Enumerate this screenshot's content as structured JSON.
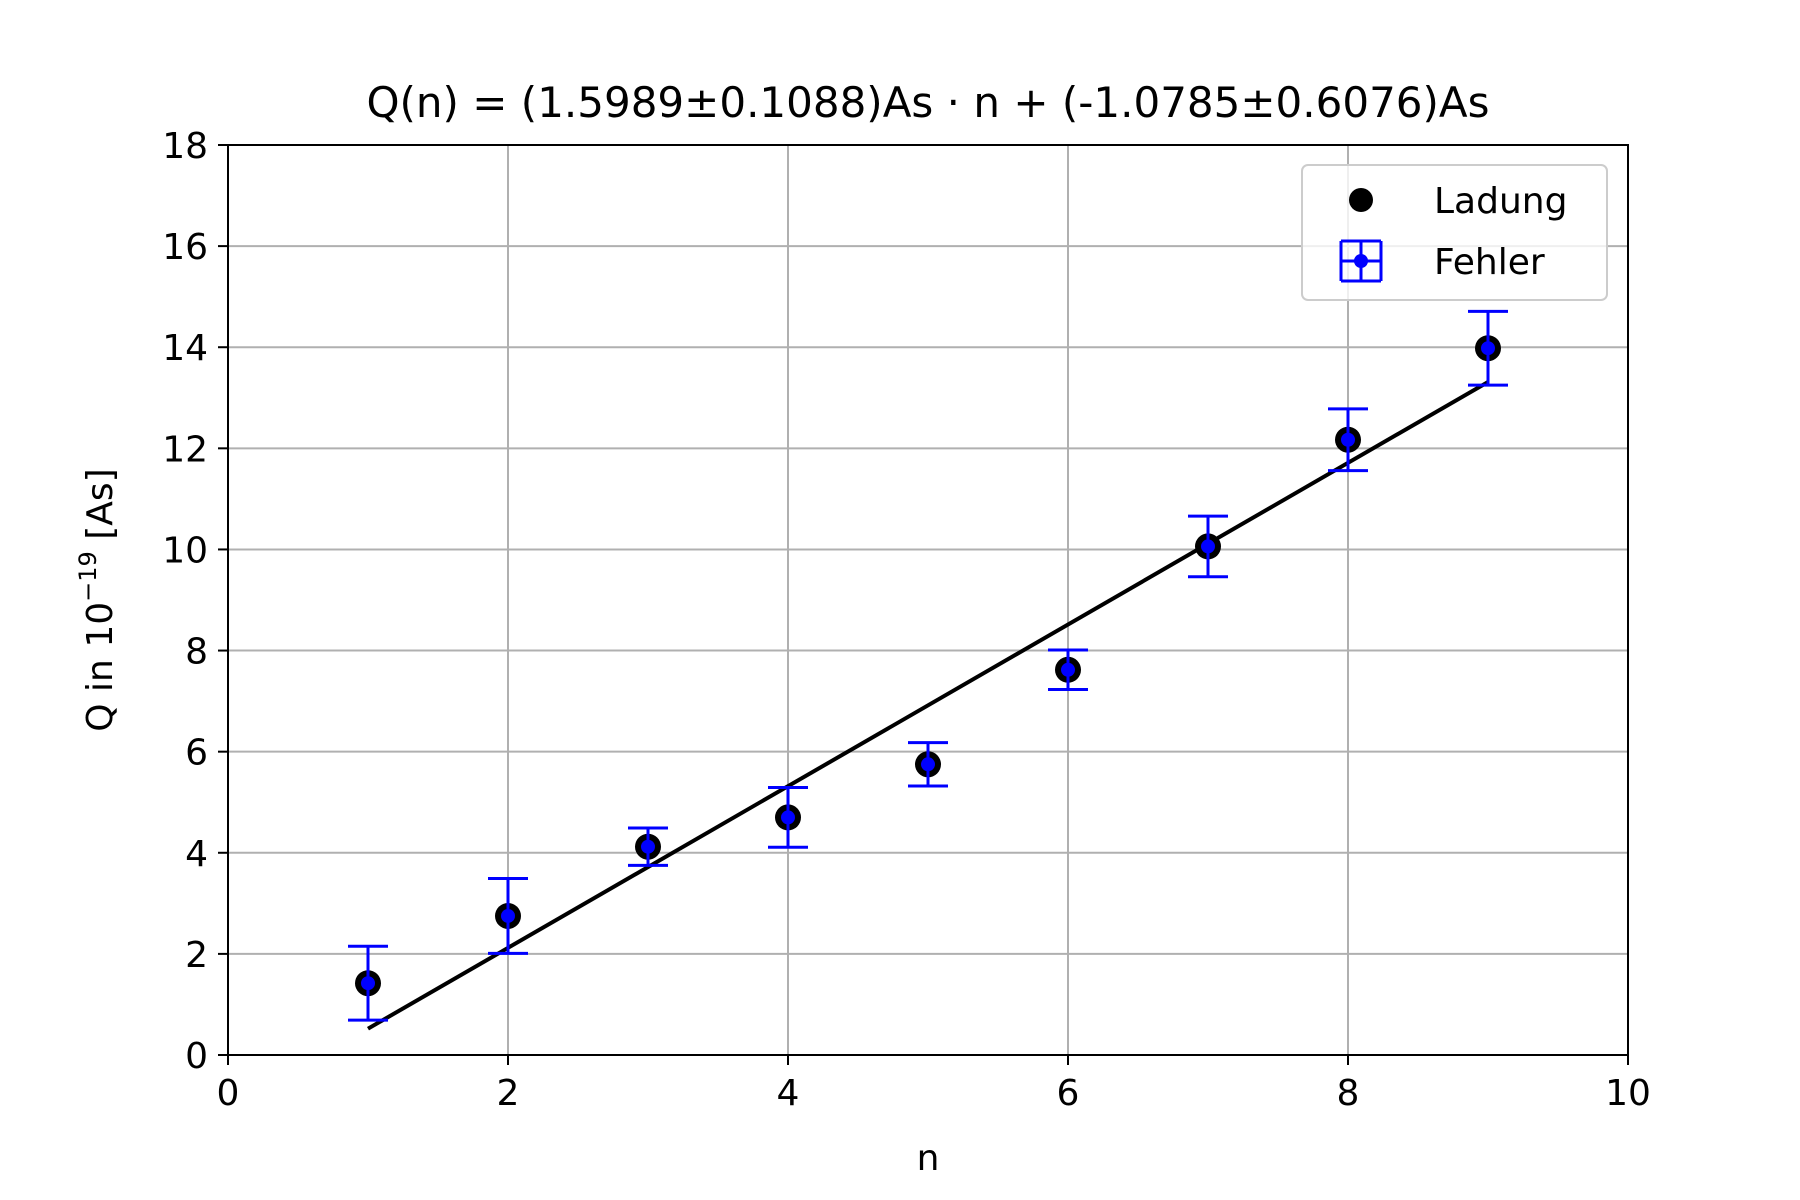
{
  "chart_data": {
    "type": "scatter",
    "title": "Q(n) = (1.5989±0.1088)As · n + (-1.0785±0.6076)As",
    "xlabel": "n",
    "ylabel": "Q in 10",
    "ylabel_exponent": "−19",
    "ylabel_unit": " [As]",
    "xlim": [
      0,
      10
    ],
    "ylim": [
      0,
      18
    ],
    "xticks": [
      0,
      2,
      4,
      6,
      8,
      10
    ],
    "yticks": [
      0,
      2,
      4,
      6,
      8,
      10,
      12,
      14,
      16,
      18
    ],
    "grid": true,
    "legend_position": "top-right",
    "series": [
      {
        "name": "Ladung",
        "kind": "markers",
        "color": "#000000",
        "x": [
          1,
          2,
          3,
          4,
          5,
          6,
          7,
          8,
          9
        ],
        "y": [
          1.42,
          2.75,
          4.12,
          4.7,
          5.75,
          7.62,
          10.06,
          12.17,
          13.98
        ]
      },
      {
        "name": "Fehler",
        "kind": "errorbar",
        "color": "#0000ff",
        "x": [
          1,
          2,
          3,
          4,
          5,
          6,
          7,
          8,
          9
        ],
        "y": [
          1.42,
          2.75,
          4.12,
          4.7,
          5.75,
          7.62,
          10.06,
          12.17,
          13.98
        ],
        "yerr": [
          0.73,
          0.74,
          0.37,
          0.59,
          0.43,
          0.39,
          0.6,
          0.61,
          0.73
        ]
      },
      {
        "kind": "fit",
        "color": "#000000",
        "slope": 1.5989,
        "intercept": -1.0785,
        "x_range": [
          1,
          9
        ]
      }
    ]
  }
}
